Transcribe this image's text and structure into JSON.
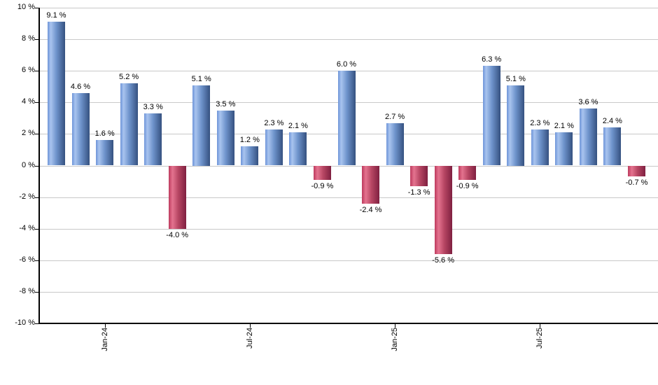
{
  "chart": {
    "background_color": "#ffffff",
    "grid_color": "#c9c9c9",
    "axis_color": "#000000",
    "label_color": "#000000",
    "positive_bar_gradient": [
      "#6d94d8",
      "#a9c4ef",
      "#6f94cc",
      "#355180"
    ],
    "negative_bar_gradient": [
      "#bd3a5e",
      "#e4738f",
      "#b74663",
      "#7f2040"
    ]
  },
  "chart_data": {
    "type": "bar",
    "title": "",
    "xlabel": "",
    "ylabel": "",
    "ylim": [
      -10,
      10
    ],
    "y_tick_interval": 2,
    "grid": true,
    "values": [
      9.1,
      4.6,
      1.6,
      5.2,
      3.3,
      -4.0,
      5.1,
      3.5,
      1.2,
      2.3,
      2.1,
      -0.9,
      6.0,
      -2.4,
      2.7,
      -1.3,
      -5.6,
      -0.9,
      6.3,
      5.1,
      2.3,
      2.1,
      3.6,
      2.4,
      -0.7
    ],
    "bar_labels": [
      "9.1 %",
      "4.6 %",
      "1.6 %",
      "5.2 %",
      "3.3 %",
      "-4.0 %",
      "5.1 %",
      "3.5 %",
      "1.2 %",
      "2.3 %",
      "2.1 %",
      "-0.9 %",
      "6.0 %",
      "-2.4 %",
      "2.7 %",
      "-1.3 %",
      "-5.6 %",
      "-0.9 %",
      "6.3 %",
      "5.1 %",
      "2.3 %",
      "2.1 %",
      "3.6 %",
      "2.4 %",
      "-0.7 %"
    ],
    "y_tick_labels": [
      "10 %",
      "8 %",
      "6 %",
      "4 %",
      "2 %",
      "0 %",
      "-2 %",
      "-4 %",
      "-6 %",
      "-8 %",
      "-10 %"
    ],
    "x_ticks": [
      {
        "label": "Jan-24",
        "bar_index": 2
      },
      {
        "label": "Jul-24",
        "bar_index": 8
      },
      {
        "label": "Jan-25",
        "bar_index": 14
      },
      {
        "label": "Jul-25",
        "bar_index": 20
      }
    ]
  }
}
